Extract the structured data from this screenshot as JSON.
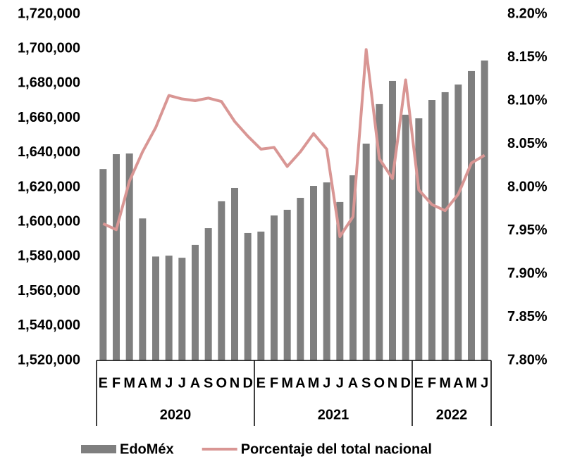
{
  "chart_data": {
    "type": "bar_line",
    "category_groups": [
      {
        "label": "2020",
        "categories": [
          "E",
          "F",
          "M",
          "A",
          "M",
          "J",
          "J",
          "A",
          "S",
          "O",
          "N",
          "D"
        ]
      },
      {
        "label": "2021",
        "categories": [
          "E",
          "F",
          "M",
          "A",
          "M",
          "J",
          "J",
          "A",
          "S",
          "O",
          "N",
          "D"
        ]
      },
      {
        "label": "2022",
        "categories": [
          "E",
          "F",
          "M",
          "A",
          "M",
          "J"
        ]
      }
    ],
    "series": [
      {
        "name": "EdoMéx",
        "type": "bar",
        "color": "#7f7f7f",
        "axis": "y",
        "values": [
          1630500,
          1639100,
          1639500,
          1602000,
          1580000,
          1580500,
          1579300,
          1586700,
          1596400,
          1611900,
          1619600,
          1593600,
          1594400,
          1603700,
          1607000,
          1613900,
          1620800,
          1622800,
          1611500,
          1626900,
          1645200,
          1668000,
          1681400,
          1661900,
          1659800,
          1670400,
          1674900,
          1679300,
          1687100,
          1693200
        ]
      },
      {
        "name": "Porcentaje del total nacional",
        "type": "line",
        "color": "#d99694",
        "axis": "y2",
        "values": [
          7.958,
          7.951,
          8.007,
          8.041,
          8.069,
          8.106,
          8.102,
          8.1,
          8.103,
          8.099,
          8.076,
          8.059,
          8.044,
          8.046,
          8.024,
          8.041,
          8.062,
          8.044,
          7.943,
          7.966,
          8.159,
          8.033,
          8.01,
          8.124,
          7.997,
          7.98,
          7.973,
          7.992,
          8.028,
          8.037
        ]
      }
    ],
    "ylim": [
      1520000,
      1720000
    ],
    "yticks": [
      {
        "value": 1520000,
        "label": "1,520,000"
      },
      {
        "value": 1540000,
        "label": "1,540,000"
      },
      {
        "value": 1560000,
        "label": "1,560,000"
      },
      {
        "value": 1580000,
        "label": "1,580,000"
      },
      {
        "value": 1600000,
        "label": "1,600,000"
      },
      {
        "value": 1620000,
        "label": "1,620,000"
      },
      {
        "value": 1640000,
        "label": "1,640,000"
      },
      {
        "value": 1660000,
        "label": "1,660,000"
      },
      {
        "value": 1680000,
        "label": "1,680,000"
      },
      {
        "value": 1700000,
        "label": "1,700,000"
      },
      {
        "value": 1720000,
        "label": "1,720,000"
      }
    ],
    "y2lim": [
      7.8,
      8.2
    ],
    "y2ticks": [
      {
        "value": 7.8,
        "label": "7.80%"
      },
      {
        "value": 7.85,
        "label": "7.85%"
      },
      {
        "value": 7.9,
        "label": "7.90%"
      },
      {
        "value": 7.95,
        "label": "7.95%"
      },
      {
        "value": 8.0,
        "label": "8.00%"
      },
      {
        "value": 8.05,
        "label": "8.05%"
      },
      {
        "value": 8.1,
        "label": "8.10%"
      },
      {
        "value": 8.15,
        "label": "8.15%"
      },
      {
        "value": 8.2,
        "label": "8.20%"
      }
    ],
    "legend": "bottom"
  }
}
